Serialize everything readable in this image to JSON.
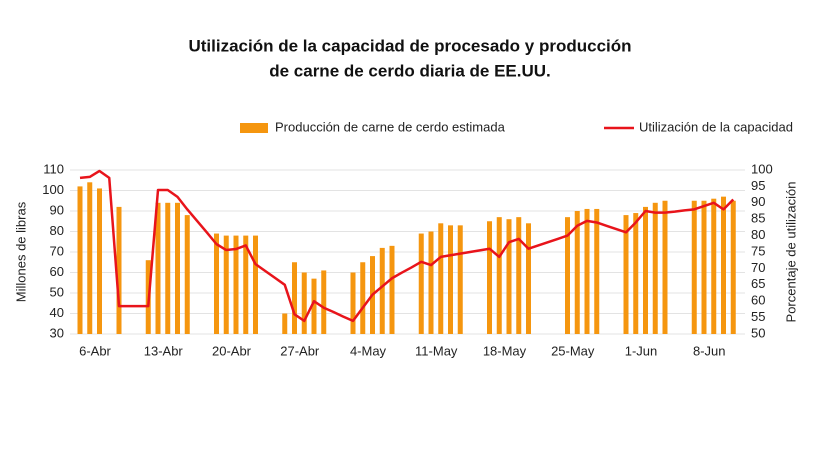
{
  "chart_data": {
    "type": "bar-line",
    "title": [
      "Utilización de la capacidad de procesado y producción",
      "de carne de cerdo diaria de EE.UU."
    ],
    "y_label": "Millones de libras",
    "y2_label": "Porcentaje de utilización",
    "categories": [
      "6-Abr",
      null,
      null,
      null,
      null,
      null,
      null,
      "13-Abr",
      null,
      null,
      null,
      null,
      null,
      null,
      "20-Abr",
      null,
      null,
      null,
      null,
      null,
      null,
      "27-Abr",
      null,
      null,
      null,
      null,
      null,
      null,
      "4-May",
      null,
      null,
      null,
      null,
      null,
      null,
      "11-May",
      null,
      null,
      null,
      null,
      null,
      null,
      "18-May",
      null,
      null,
      null,
      null,
      null,
      null,
      "25-May",
      null,
      null,
      null,
      null,
      null,
      null,
      "1-Jun",
      null,
      null,
      null,
      null,
      null,
      null,
      "8-Jun",
      null,
      null,
      null,
      null
    ],
    "series": [
      {
        "name": "Producción de carne de cerdo estimada",
        "type": "bar",
        "color": "#f5960f",
        "values": [
          102,
          104,
          101,
          null,
          92,
          null,
          null,
          66,
          94,
          94,
          94,
          88,
          null,
          null,
          79,
          78,
          78,
          78,
          78,
          null,
          null,
          40,
          65,
          60,
          57,
          61,
          null,
          null,
          60,
          65,
          68,
          72,
          73,
          null,
          null,
          79,
          80,
          84,
          83,
          83,
          null,
          null,
          85,
          87,
          86,
          87,
          84,
          null,
          null,
          null,
          87,
          90,
          91,
          91,
          null,
          null,
          88,
          89,
          92,
          94,
          95,
          null,
          null,
          95,
          95,
          96,
          97,
          95
        ]
      },
      {
        "name": "Utilización de la capacidad",
        "type": "line",
        "axis": "y2",
        "color": "#e8141b",
        "values": [
          97.6,
          97.9,
          99.7,
          97.6,
          58.5,
          58.5,
          58.5,
          58.5,
          93.9,
          93.9,
          91.8,
          88,
          84.5,
          81,
          77.4,
          75.6,
          75.9,
          77,
          71.3,
          69.2,
          67.1,
          65,
          56,
          54,
          60,
          58,
          56.7,
          55.3,
          54,
          58,
          62,
          64.5,
          67,
          68.7,
          70.3,
          72,
          71,
          73.5,
          74,
          74.5,
          75,
          75.5,
          76,
          73.5,
          78,
          79,
          76,
          77,
          78,
          79,
          80,
          83,
          84.5,
          84,
          83,
          82,
          81,
          84,
          87.5,
          87,
          87,
          87.3,
          87.7,
          88,
          89,
          90,
          88,
          91
        ]
      }
    ],
    "ylim": [
      30,
      110
    ],
    "yticks": [
      30,
      40,
      50,
      60,
      70,
      80,
      90,
      100,
      110
    ],
    "y2lim": [
      50,
      100
    ],
    "y2ticks": [
      50,
      55,
      60,
      65,
      70,
      75,
      80,
      85,
      90,
      95,
      100
    ],
    "grid": true,
    "legend": "top"
  }
}
